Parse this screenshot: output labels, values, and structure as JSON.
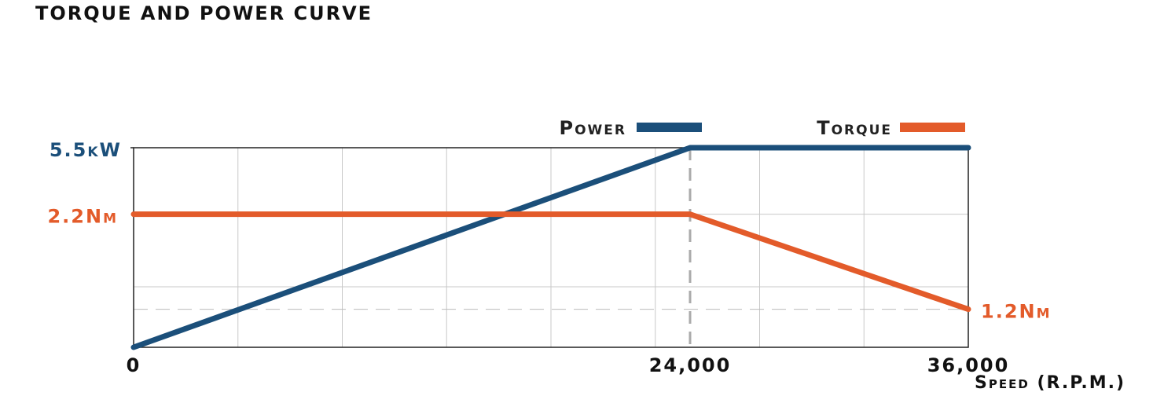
{
  "chart_data": {
    "type": "line",
    "title": "TORQUE AND POWER CURVE",
    "xlabel": "Speed (R.P.M.)",
    "x": [
      0,
      24000,
      36000
    ],
    "xlim": [
      0,
      36000
    ],
    "xticks": [
      0,
      {
        "value": 24000,
        "label": "24,000"
      },
      {
        "value": 36000,
        "label": "36,000"
      }
    ],
    "ylim": [
      0,
      5.5
    ],
    "yticks": [
      {
        "value": 5.5,
        "label": "5.5kW"
      }
    ],
    "y2lim": [
      0.8,
      2.9
    ],
    "y2ticks": [
      {
        "value": 2.2,
        "label": "2.2Nm"
      },
      {
        "value": 1.2,
        "label": "1.2Nm"
      }
    ],
    "grid": true,
    "legend": "top-right",
    "series": [
      {
        "name": "Power",
        "color": "#1b4f7a",
        "values": [
          0,
          5.5,
          5.5
        ]
      },
      {
        "name": "Torque",
        "color": "#e35b2a",
        "values": [
          2.2,
          2.2,
          1.2
        ],
        "axis": "y2"
      }
    ]
  }
}
